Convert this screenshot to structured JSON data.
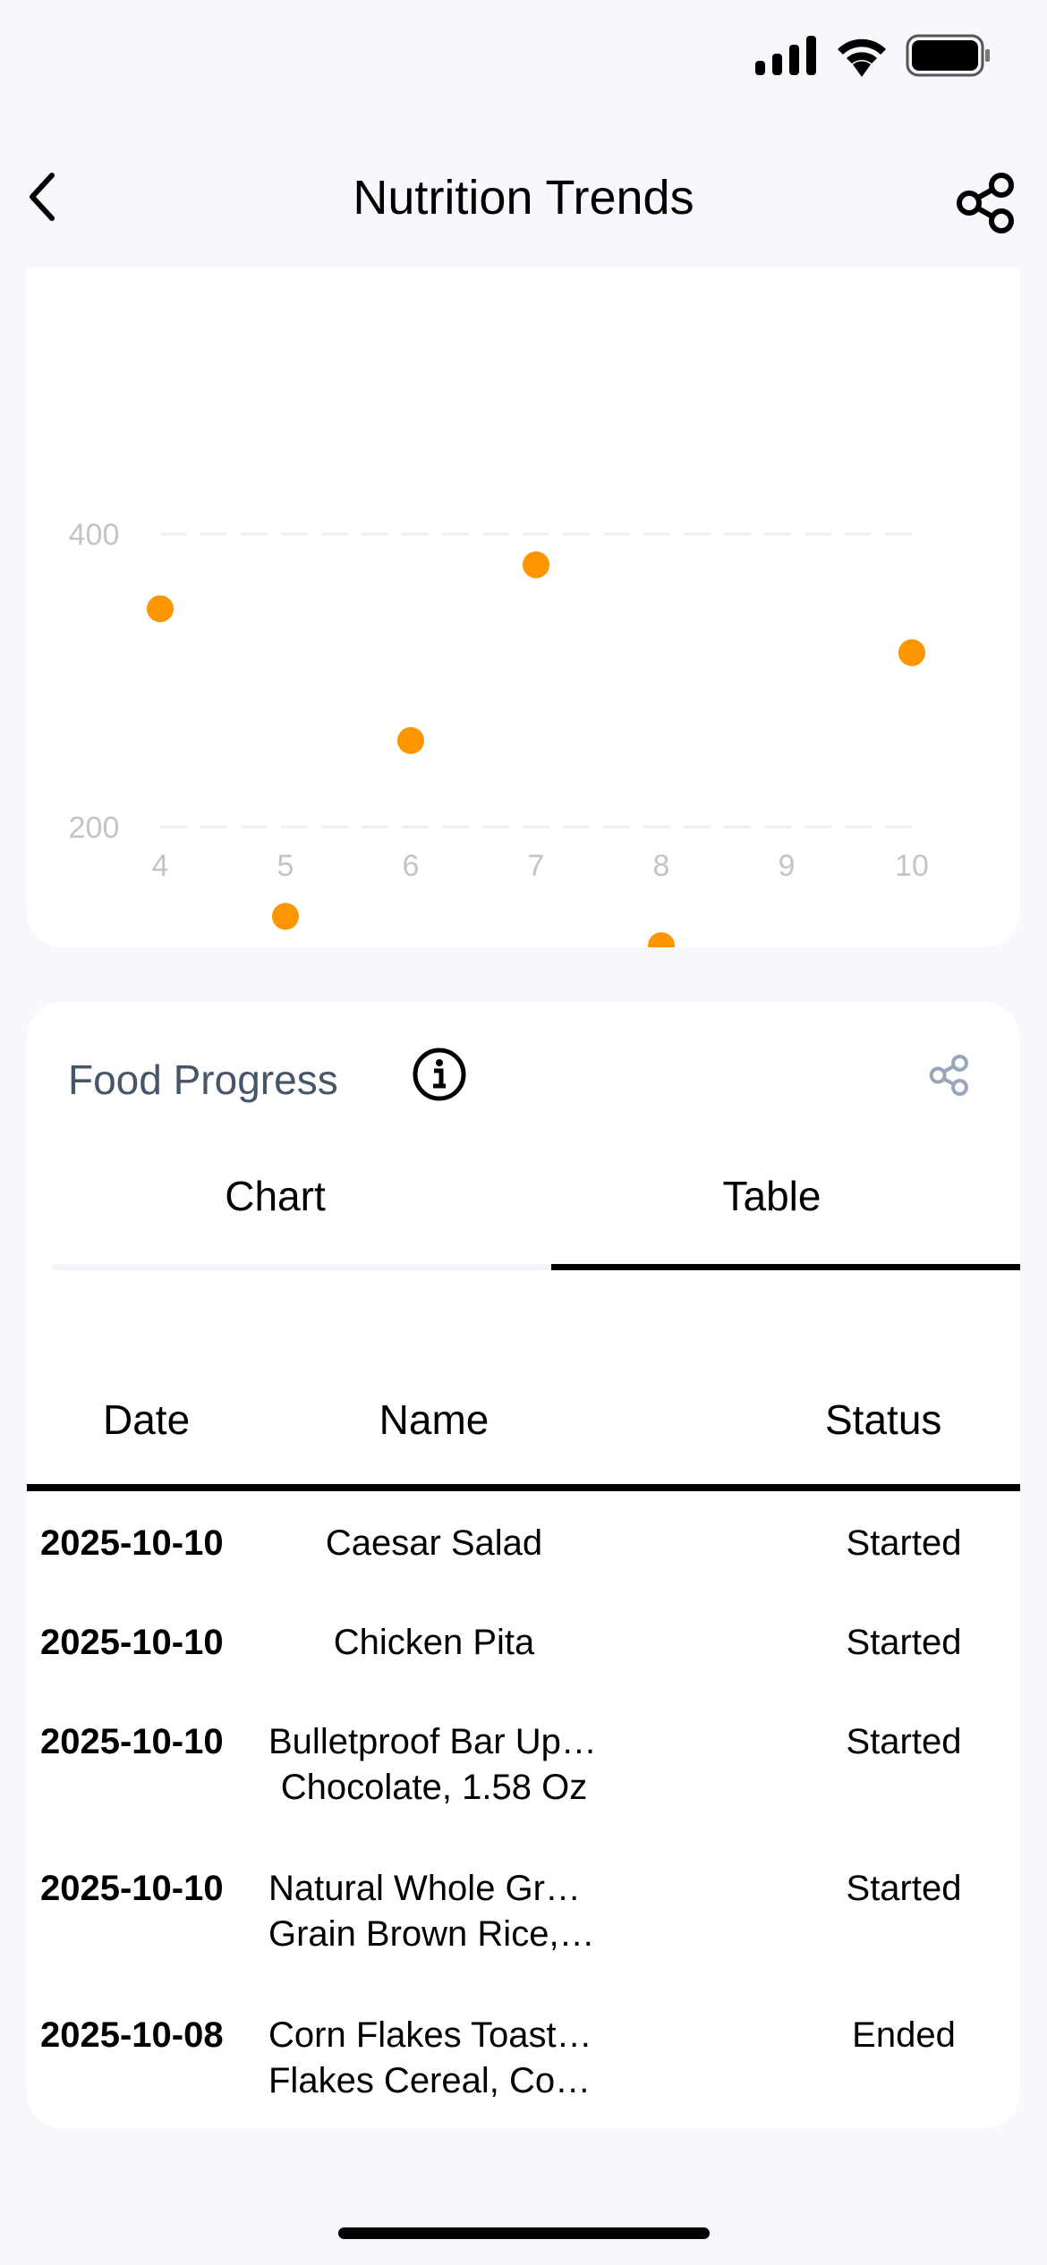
{
  "header": {
    "title": "Nutrition Trends",
    "back_icon": "chevron-left-icon",
    "share_icon": "share-icon"
  },
  "status_bar": {
    "icons": [
      "signal-icon",
      "wifi-icon",
      "battery-icon"
    ]
  },
  "chart_data": {
    "type": "scatter",
    "x": [
      4,
      5,
      6,
      7,
      8,
      10
    ],
    "y": [
      349,
      139,
      259,
      379,
      119,
      319
    ],
    "x_ticks": [
      "4",
      "5",
      "6",
      "7",
      "8",
      "9",
      "10"
    ],
    "y_ticks": [
      "200",
      "400"
    ],
    "xlim": [
      4,
      10
    ],
    "ylim": [
      0,
      400
    ],
    "grid": true,
    "color": "#fb9600"
  },
  "food_progress": {
    "title": "Food Progress",
    "tabs": [
      {
        "label": "Chart",
        "active": false
      },
      {
        "label": "Table",
        "active": true
      }
    ],
    "columns": [
      "Date",
      "Name",
      "Status"
    ],
    "rows": [
      {
        "date": "2025-10-10",
        "name": [
          "Caesar Salad"
        ],
        "status": "Started"
      },
      {
        "date": "2025-10-10",
        "name": [
          "Chicken Pita"
        ],
        "status": "Started"
      },
      {
        "date": "2025-10-10",
        "name": [
          "Bulletproof Bar Upgraded",
          "Chocolate, 1.58 Oz"
        ],
        "status": "Started"
      },
      {
        "date": "2025-10-10",
        "name": [
          "Natural Whole Grain Long",
          "Grain Brown Rice, Whole…"
        ],
        "status": "Started"
      },
      {
        "date": "2025-10-08",
        "name": [
          "Corn Flakes Toasted Corn",
          "Flakes Cereal, Corn Flakes"
        ],
        "status": "Ended"
      }
    ]
  }
}
